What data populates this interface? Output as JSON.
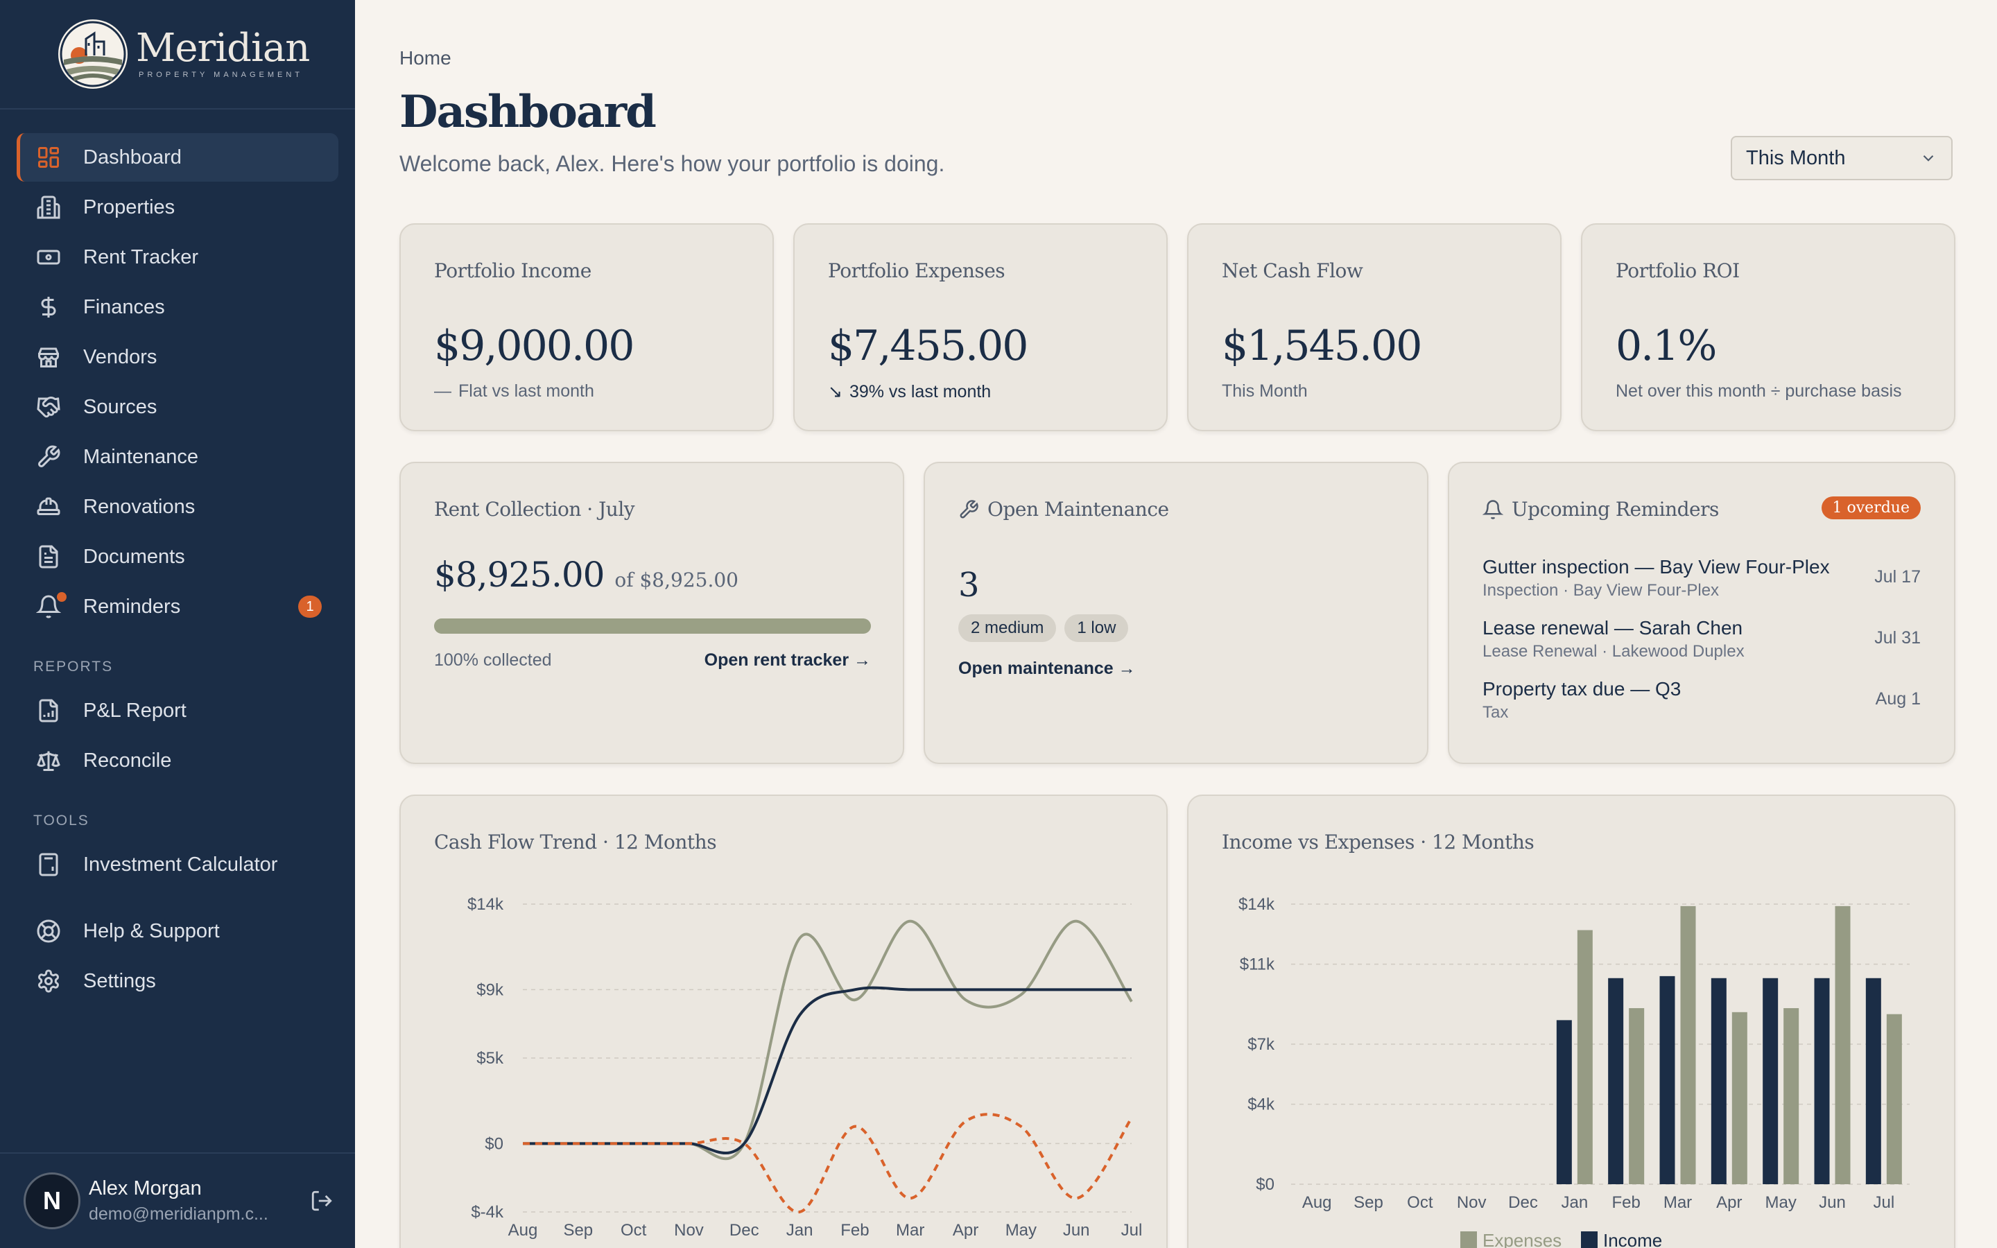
{
  "brand": {
    "name": "Meridian",
    "subtitle": "PROPERTY MANAGEMENT"
  },
  "sidebar": {
    "items": [
      {
        "label": "Dashboard",
        "icon": "grid-icon",
        "active": true
      },
      {
        "label": "Properties",
        "icon": "building-icon"
      },
      {
        "label": "Rent Tracker",
        "icon": "banknote-icon"
      },
      {
        "label": "Finances",
        "icon": "dollar-icon"
      },
      {
        "label": "Vendors",
        "icon": "store-icon"
      },
      {
        "label": "Sources",
        "icon": "handshake-icon"
      },
      {
        "label": "Maintenance",
        "icon": "wrench-icon"
      },
      {
        "label": "Renovations",
        "icon": "hardhat-icon"
      },
      {
        "label": "Documents",
        "icon": "document-icon"
      },
      {
        "label": "Reminders",
        "icon": "bell-icon",
        "badge": "1"
      }
    ],
    "reports_label": "REPORTS",
    "reports": [
      {
        "label": "P&L Report",
        "icon": "report-icon"
      },
      {
        "label": "Reconcile",
        "icon": "scale-icon"
      }
    ],
    "tools_label": "TOOLS",
    "tools": [
      {
        "label": "Investment Calculator",
        "icon": "calculator-icon"
      }
    ],
    "bottom": [
      {
        "label": "Help & Support",
        "icon": "lifebuoy-icon"
      },
      {
        "label": "Settings",
        "icon": "gear-icon"
      }
    ]
  },
  "user": {
    "initial": "N",
    "name": "Alex Morgan",
    "email": "demo@meridianpm.c..."
  },
  "header": {
    "breadcrumb": "Home",
    "title": "Dashboard",
    "welcome": "Welcome back, Alex. Here's how your portfolio is doing.",
    "period": "This Month"
  },
  "kpis": [
    {
      "title": "Portfolio Income",
      "value": "$9,000.00",
      "trend": "—",
      "sub": "Flat vs last month"
    },
    {
      "title": "Portfolio Expenses",
      "value": "$7,455.00",
      "trend": "↘",
      "sub": "39% vs last month"
    },
    {
      "title": "Net Cash Flow",
      "value": "$1,545.00",
      "trend": "",
      "sub": "This Month"
    },
    {
      "title": "Portfolio ROI",
      "value": "0.1%",
      "trend": "",
      "sub": "Net over this month ÷ purchase basis"
    }
  ],
  "rent_collection": {
    "title": "Rent Collection · July",
    "amount": "$8,925.00",
    "of": "of $8,925.00",
    "progress": 1.0,
    "collected": "100% collected",
    "link": "Open rent tracker →"
  },
  "maintenance": {
    "title": "Open Maintenance",
    "count": "3",
    "pills": [
      "2 medium",
      "1 low"
    ],
    "link": "Open maintenance →"
  },
  "reminders": {
    "title": "Upcoming Reminders",
    "badge": "1 overdue",
    "items": [
      {
        "title": "Gutter inspection — Bay View Four-Plex",
        "sub": "Inspection · Bay View Four-Plex",
        "date": "Jul 17"
      },
      {
        "title": "Lease renewal — Sarah Chen",
        "sub": "Lease Renewal · Lakewood Duplex",
        "date": "Jul 31"
      },
      {
        "title": "Property tax due — Q3",
        "sub": "Tax",
        "date": "Aug 1"
      }
    ]
  },
  "colors": {
    "navy": "#1b2d46",
    "sage": "#969b84",
    "orange": "#d9622b"
  },
  "chart_data": [
    {
      "type": "line",
      "title": "Cash Flow Trend · 12 Months",
      "categories": [
        "Aug",
        "Sep",
        "Oct",
        "Nov",
        "Dec",
        "Jan",
        "Feb",
        "Mar",
        "Apr",
        "May",
        "Jun",
        "Jul"
      ],
      "y_ticks": [
        "$14k",
        "$9k",
        "$5k",
        "$0",
        "$-4k"
      ],
      "y_tick_values": [
        14000,
        9000,
        5000,
        0,
        -4000
      ],
      "ylim": [
        -4000,
        14000
      ],
      "grid": true,
      "series": [
        {
          "color": "#969b84",
          "style": "solid",
          "values": [
            0,
            0,
            0,
            0,
            0,
            12000,
            8400,
            13000,
            8400,
            8700,
            13000,
            8300
          ]
        },
        {
          "color": "#1b2d46",
          "style": "solid",
          "values": [
            0,
            0,
            0,
            0,
            0,
            7500,
            9000,
            9000,
            9000,
            9000,
            9000,
            9000
          ]
        },
        {
          "color": "#d9622b",
          "style": "dashed",
          "values": [
            0,
            0,
            0,
            0,
            0,
            -4000,
            1000,
            -3200,
            1300,
            1000,
            -3200,
            1500
          ]
        }
      ]
    },
    {
      "type": "bar",
      "title": "Income vs Expenses · 12 Months",
      "categories": [
        "Aug",
        "Sep",
        "Oct",
        "Nov",
        "Dec",
        "Jan",
        "Feb",
        "Mar",
        "Apr",
        "May",
        "Jun",
        "Jul"
      ],
      "y_ticks": [
        "$14k",
        "$11k",
        "$7k",
        "$4k",
        "$0"
      ],
      "y_tick_values": [
        14000,
        11000,
        7000,
        4000,
        0
      ],
      "ylim": [
        0,
        14000
      ],
      "grid": true,
      "legend": "bottom",
      "series": [
        {
          "name": "Income",
          "color": "#1b2d46",
          "values": [
            0,
            0,
            0,
            0,
            0,
            8200,
            10300,
            10400,
            10300,
            10300,
            10300,
            10300
          ]
        },
        {
          "name": "Expenses",
          "color": "#969b84",
          "values": [
            0,
            0,
            0,
            0,
            0,
            12700,
            8800,
            13900,
            8600,
            8800,
            13900,
            8500
          ]
        }
      ]
    }
  ]
}
